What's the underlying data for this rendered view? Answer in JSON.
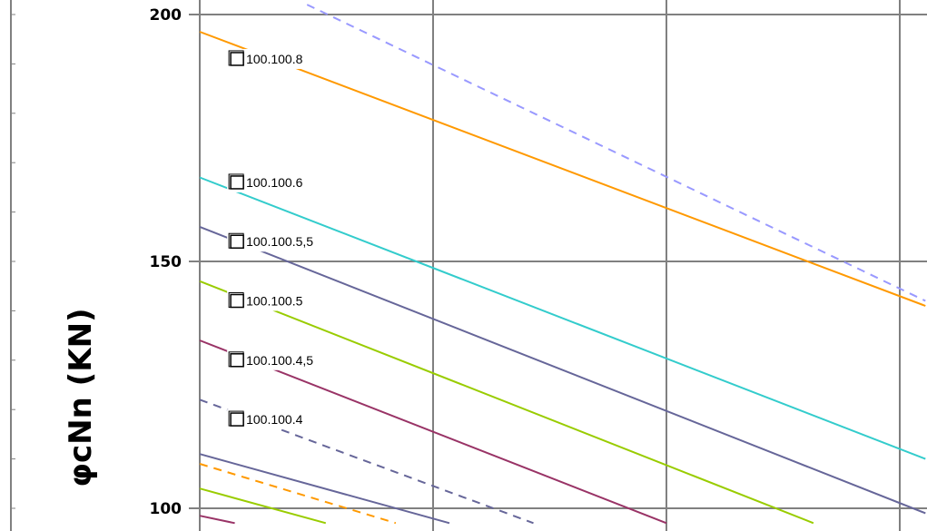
{
  "chart_data": {
    "type": "line",
    "ylabel": "φcNn (KN)",
    "ylim": [
      97,
      202
    ],
    "xlim": [
      0,
      3.11
    ],
    "y_ticks": [
      100,
      150,
      200
    ],
    "y_tick_labels": [
      "100",
      "150",
      "200"
    ],
    "grid": true,
    "series": [
      {
        "name": "100.100.8",
        "color": "#ff9900",
        "dash": false,
        "values": [
          [
            0,
            196.5
          ],
          [
            3.11,
            141
          ]
        ]
      },
      {
        "name": "100.100.6",
        "color": "#33cccc",
        "dash": false,
        "values": [
          [
            0,
            167
          ],
          [
            3.11,
            110
          ]
        ]
      },
      {
        "name": "100.100.5,5",
        "color": "#666699",
        "dash": false,
        "values": [
          [
            0,
            157
          ],
          [
            3.11,
            99
          ]
        ]
      },
      {
        "name": "100.100.5",
        "color": "#99cc00",
        "dash": false,
        "values": [
          [
            0,
            146
          ],
          [
            2.63,
            97
          ]
        ]
      },
      {
        "name": "100.100.4,5",
        "color": "#993366",
        "dash": false,
        "values": [
          [
            0,
            134
          ],
          [
            2.0,
            97
          ]
        ]
      },
      {
        "name": "100.100.4",
        "color": "#666699",
        "dash": true,
        "values": [
          [
            0,
            122
          ],
          [
            1.43,
            97
          ]
        ]
      },
      {
        "name": "",
        "color": "#9999ff",
        "dash": true,
        "values": [
          [
            0.46,
            202
          ],
          [
            3.11,
            142
          ]
        ]
      },
      {
        "name": "",
        "color": "#ff9900",
        "dash": true,
        "values": [
          [
            0,
            109
          ],
          [
            0.84,
            97
          ]
        ]
      },
      {
        "name": "",
        "color": "#666699",
        "dash": false,
        "values": [
          [
            0,
            111
          ],
          [
            1.07,
            97
          ]
        ]
      },
      {
        "name": "",
        "color": "#99cc00",
        "dash": false,
        "values": [
          [
            0,
            104
          ],
          [
            0.54,
            97
          ]
        ]
      },
      {
        "name": "",
        "color": "#993366",
        "dash": false,
        "values": [
          [
            0,
            98.5
          ],
          [
            0.15,
            97
          ]
        ]
      }
    ],
    "markers": [
      {
        "series": "100.100.8",
        "x": 0.16,
        "y": 191
      },
      {
        "series": "100.100.6",
        "x": 0.16,
        "y": 166
      },
      {
        "series": "100.100.5,5",
        "x": 0.16,
        "y": 154
      },
      {
        "series": "100.100.5",
        "x": 0.16,
        "y": 142
      },
      {
        "series": "100.100.4,5",
        "x": 0.16,
        "y": 130
      },
      {
        "series": "100.100.4",
        "x": 0.16,
        "y": 118
      }
    ]
  }
}
